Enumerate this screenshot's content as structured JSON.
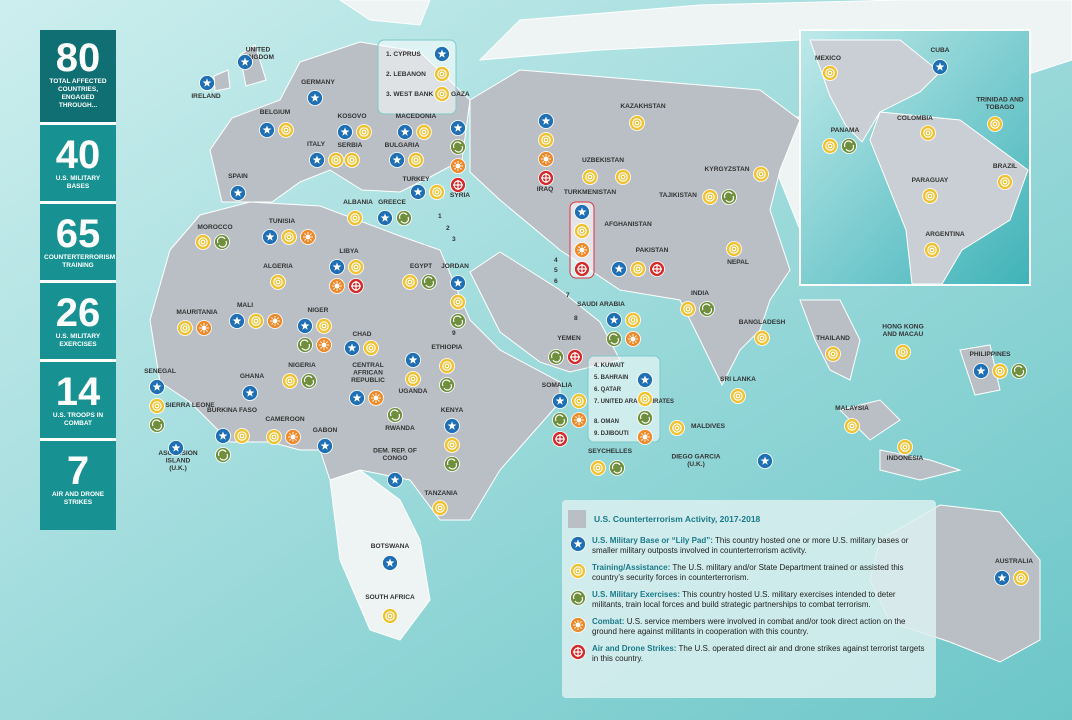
{
  "sidebar": {
    "stats": [
      {
        "value": 80,
        "label": "TOTAL AFFECTED COUNTRIES, ENGAGED THROUGH..."
      },
      {
        "value": 40,
        "label": "U.S. MILITARY BASES"
      },
      {
        "value": 65,
        "label": "COUNTERTERRORISM TRAINING"
      },
      {
        "value": 26,
        "label": "U.S. MILITARY EXERCISES"
      },
      {
        "value": 14,
        "label": "U.S. TROOPS IN COMBAT"
      },
      {
        "value": 7,
        "label": "AIR AND DRONE STRIKES"
      }
    ]
  },
  "legend": {
    "title": "U.S. Counterterrorism Activity, 2017-2018",
    "items": [
      {
        "name": "U.S. Military Base or “Lily Pad”:",
        "text": "This country hosted one or more U.S. military bases or smaller military outposts involved in counterterrorism activity.",
        "color": "#1f6fb5"
      },
      {
        "name": "Training/Assistance:",
        "text": "The U.S. military and/or State Department trained or assisted this country’s security forces in counterterrorism.",
        "color": "#f2c12e"
      },
      {
        "name": "U.S. Military Exercises:",
        "text": "This country hosted U.S. military exercises intended to deter militants, train local forces and build strategic partnerships to combat terrorism.",
        "color": "#6f8f3d"
      },
      {
        "name": "Combat:",
        "text": "U.S. service members were involved in combat and/or took direct action on the ground here against militants in cooperation with this country.",
        "color": "#ef8a2a"
      },
      {
        "name": "Air and Drone Strikes:",
        "text": "The U.S. operated direct air and drone strikes against terrorist targets in this country.",
        "color": "#d62a2a"
      }
    ]
  },
  "countries": [
    {
      "label": "UNITED KINGDOM",
      "icons": [
        0
      ]
    },
    {
      "label": "IRELAND",
      "icons": [
        0
      ]
    },
    {
      "label": "GERMANY",
      "icons": [
        0
      ]
    },
    {
      "label": "BELGIUM",
      "icons": [
        0,
        1
      ]
    },
    {
      "label": "ITALY",
      "icons": [
        0,
        1
      ]
    },
    {
      "label": "SPAIN",
      "icons": [
        0
      ]
    },
    {
      "label": "KOSOVO",
      "icons": [
        0,
        1
      ]
    },
    {
      "label": "SERBIA",
      "icons": [
        1
      ]
    },
    {
      "label": "MACEDONIA",
      "icons": [
        0,
        1
      ]
    },
    {
      "label": "BULGARIA",
      "icons": [
        0,
        1
      ]
    },
    {
      "label": "ALBANIA",
      "icons": [
        1
      ]
    },
    {
      "label": "GREECE",
      "icons": [
        0,
        2
      ]
    },
    {
      "label": "TURKEY",
      "icons": [
        0,
        1
      ]
    },
    {
      "label": "SYRIA",
      "icons": [
        0,
        2,
        3,
        4
      ]
    },
    {
      "label": "MOROCCO",
      "icons": [
        1,
        2
      ]
    },
    {
      "label": "TUNISIA",
      "icons": [
        0,
        1,
        3
      ]
    },
    {
      "label": "ALGERIA",
      "icons": [
        1
      ]
    },
    {
      "label": "LIBYA",
      "icons": [
        0,
        1,
        3,
        4
      ]
    },
    {
      "label": "EGYPT",
      "icons": [
        1,
        2
      ]
    },
    {
      "label": "JORDAN",
      "icons": [
        0,
        1,
        2
      ]
    },
    {
      "label": "IRAQ",
      "icons": [
        0,
        1,
        3,
        4
      ]
    },
    {
      "label": "MAURITANIA",
      "icons": [
        1,
        3
      ]
    },
    {
      "label": "MALI",
      "icons": [
        0,
        1,
        3
      ]
    },
    {
      "label": "NIGER",
      "icons": [
        0,
        1,
        2,
        3
      ]
    },
    {
      "label": "CHAD",
      "icons": [
        0,
        1
      ]
    },
    {
      "label": "SENEGAL",
      "icons": [
        0,
        1,
        2
      ]
    },
    {
      "label": "SIERRA LEONE",
      "icons": []
    },
    {
      "label": "GHANA",
      "icons": [
        0
      ]
    },
    {
      "label": "BURKINA FASO",
      "icons": [
        0,
        1,
        2
      ]
    },
    {
      "label": "NIGERIA",
      "icons": [
        1,
        2
      ]
    },
    {
      "label": "CAMEROON",
      "icons": [
        1,
        3
      ]
    },
    {
      "label": "GABON",
      "icons": [
        0
      ]
    },
    {
      "label": "CENTRAL AFRICAN REPUBLIC",
      "icons": [
        0,
        3
      ]
    },
    {
      "label": "ETHIOPIA",
      "icons": [
        1,
        2
      ]
    },
    {
      "label": "UGANDA",
      "icons": [
        0,
        1
      ]
    },
    {
      "label": "RWANDA",
      "icons": [
        2
      ]
    },
    {
      "label": "KENYA",
      "icons": [
        0,
        1,
        2
      ]
    },
    {
      "label": "DEM. REP. OF CONGO",
      "icons": [
        0
      ]
    },
    {
      "label": "TANZANIA",
      "icons": [
        1
      ]
    },
    {
      "label": "SOMALIA",
      "icons": [
        0,
        1,
        2,
        3,
        4
      ]
    },
    {
      "label": "YEMEN",
      "icons": [
        2,
        4
      ]
    },
    {
      "label": "SEYCHELLES",
      "icons": [
        1,
        2
      ]
    },
    {
      "label": "ASCENSION ISLAND (U.K.)",
      "icons": [
        0
      ]
    },
    {
      "label": "BOTSWANA",
      "icons": [
        0
      ]
    },
    {
      "label": "SOUTH AFRICA",
      "icons": [
        1
      ]
    },
    {
      "label": "SAUDI ARABIA",
      "icons": [
        0,
        1,
        2,
        3
      ]
    },
    {
      "label": "AFGHANISTAN",
      "icons": [
        0,
        1,
        3,
        4
      ]
    },
    {
      "label": "PAKISTAN",
      "icons": [
        0,
        1,
        4
      ]
    },
    {
      "label": "KAZAKHSTAN",
      "icons": [
        1
      ]
    },
    {
      "label": "UZBEKISTAN",
      "icons": [
        1
      ]
    },
    {
      "label": "TURKMENISTAN",
      "icons": [
        1
      ]
    },
    {
      "label": "KYRGYZSTAN",
      "icons": [
        1
      ]
    },
    {
      "label": "TAJIKISTAN",
      "icons": [
        1,
        2
      ]
    },
    {
      "label": "NEPAL",
      "icons": [
        1
      ]
    },
    {
      "label": "INDIA",
      "icons": [
        1,
        2
      ]
    },
    {
      "label": "BANGLADESH",
      "icons": [
        1
      ]
    },
    {
      "label": "SRI LANKA",
      "icons": [
        1
      ]
    },
    {
      "label": "MALDIVES",
      "icons": [
        1
      ]
    },
    {
      "label": "DIEGO GARCIA (U.K.)",
      "icons": [
        0
      ]
    },
    {
      "label": "THAILAND",
      "icons": [
        1
      ]
    },
    {
      "label": "HONG KONG AND MACAU",
      "icons": [
        1
      ]
    },
    {
      "label": "PHILIPPINES",
      "icons": [
        0,
        1,
        2
      ]
    },
    {
      "label": "MALAYSIA",
      "icons": [
        1
      ]
    },
    {
      "label": "INDONESIA",
      "icons": [
        1
      ]
    },
    {
      "label": "AUSTRALIA",
      "icons": [
        0,
        1
      ]
    }
  ],
  "box_a": [
    {
      "label": "1. CYPRUS",
      "icons": [
        0
      ]
    },
    {
      "label": "2. LEBANON",
      "icons": [
        1
      ]
    },
    {
      "label": "3. WEST BANK AND GAZA",
      "icons": [
        1
      ]
    }
  ],
  "box_b": {
    "labels": [
      "4. KUWAIT",
      "5. BAHRAIN",
      "6. QATAR",
      "7. UNITED ARAB EMIRATES",
      "8. OMAN",
      "9. DJIBOUTI"
    ],
    "icons": [
      0,
      1,
      2,
      3
    ]
  },
  "map_numbers": [
    "1",
    "2",
    "3",
    "4",
    "5",
    "6",
    "7",
    "8",
    "9"
  ],
  "inset": [
    {
      "label": "MEXICO",
      "icons": [
        1
      ]
    },
    {
      "label": "CUBA",
      "icons": [
        0
      ]
    },
    {
      "label": "TRINIDAD AND TOBAGO",
      "icons": [
        1
      ]
    },
    {
      "label": "COLOMBIA",
      "icons": [
        1
      ]
    },
    {
      "label": "PANAMA",
      "icons": [
        1,
        2
      ]
    },
    {
      "label": "BRAZIL",
      "icons": [
        1
      ]
    },
    {
      "label": "PARAGUAY",
      "icons": [
        1
      ]
    },
    {
      "label": "ARGENTINA",
      "icons": [
        1
      ]
    }
  ]
}
